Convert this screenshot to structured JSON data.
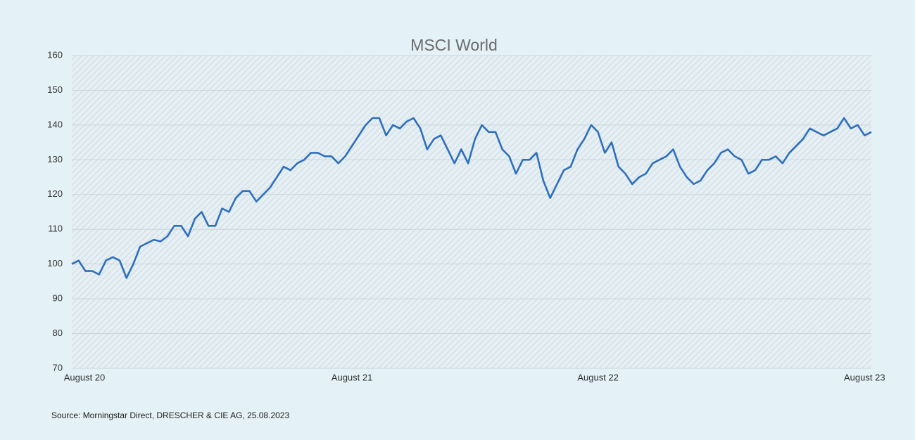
{
  "chart_data": {
    "type": "line",
    "title": "MSCI World",
    "source": "Source: Morningstar Direct, DRESCHER & CIE AG, 25.08.2023",
    "categories": [
      "August 20",
      null,
      null,
      null,
      null,
      null,
      null,
      null,
      null,
      null,
      null,
      null,
      null,
      null,
      null,
      null,
      null,
      null,
      null,
      null,
      null,
      null,
      null,
      null,
      null,
      null,
      null,
      null,
      null,
      null,
      null,
      null,
      null,
      null,
      null,
      null,
      null,
      null,
      null,
      null,
      null,
      "August 21",
      null,
      null,
      null,
      null,
      null,
      null,
      null,
      null,
      null,
      null,
      null,
      null,
      null,
      null,
      null,
      null,
      null,
      null,
      null,
      null,
      null,
      null,
      null,
      null,
      null,
      null,
      null,
      null,
      null,
      null,
      null,
      null,
      null,
      null,
      null,
      "August 22",
      null,
      null,
      null,
      null,
      null,
      null,
      null,
      null,
      null,
      null,
      null,
      null,
      null,
      null,
      null,
      null,
      null,
      null,
      null,
      null,
      null,
      null,
      null,
      null,
      null,
      null,
      null,
      null,
      null,
      null,
      null,
      null,
      null,
      null,
      null,
      null,
      null,
      null,
      "August 23",
      null
    ],
    "series": [
      {
        "name": "MSCI World",
        "color": "#2e6fbd",
        "values": [
          100,
          101,
          98,
          98,
          97,
          101,
          102,
          101,
          96,
          100,
          105,
          106,
          107,
          106.5,
          108,
          111,
          111,
          108,
          113,
          115,
          111,
          111,
          116,
          115,
          119,
          121,
          121,
          118,
          120,
          122,
          125,
          128,
          127,
          129,
          130,
          132,
          132,
          131,
          131,
          129,
          131,
          134,
          137,
          140,
          142,
          142,
          137,
          140,
          139,
          141,
          142,
          139,
          133,
          136,
          137,
          133,
          129,
          133,
          129,
          136,
          140,
          138,
          138,
          133,
          131,
          126,
          130,
          130,
          132,
          124,
          119,
          123,
          127,
          128,
          133,
          136,
          140,
          138,
          132,
          135,
          128,
          126,
          123,
          125,
          126,
          129,
          130,
          131,
          133,
          128,
          125,
          123,
          124,
          127,
          129,
          132,
          133,
          131,
          130,
          126,
          127,
          130,
          130,
          131,
          129,
          132,
          134,
          136,
          139,
          138,
          137,
          138,
          139,
          142,
          139,
          140,
          137,
          138
        ]
      }
    ],
    "ylim": [
      70,
      160
    ],
    "yticks": [
      70,
      80,
      90,
      100,
      110,
      120,
      130,
      140,
      150,
      160
    ],
    "grid": true
  }
}
